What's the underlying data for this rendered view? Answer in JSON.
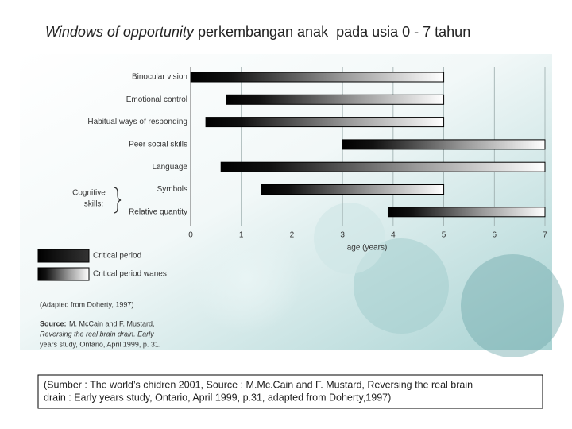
{
  "title_emphasis": "Windows of opportunity",
  "title": "perkembangan anak  pada usia 0 - 7 tahun",
  "chart_data": {
    "type": "range-bar",
    "categories": [
      "Binocular vision",
      "Emotional control",
      "Habitual ways of responding",
      "Peer social skills",
      "Language",
      "Symbols",
      "Relative quantity"
    ],
    "starts": [
      0,
      0.7,
      0.3,
      3,
      0.6,
      1.4,
      3.9
    ],
    "ends": [
      5,
      5,
      5,
      7,
      7,
      5,
      7
    ],
    "xlim": [
      0,
      7
    ],
    "xticks": [
      0,
      1,
      2,
      3,
      4,
      5,
      6,
      7
    ],
    "grid": true,
    "xlabel": "age (years)",
    "group_label": [
      "Cognitive",
      "skills:"
    ],
    "legend": [
      {
        "label": "Critical period",
        "style": "solid"
      },
      {
        "label": "Critical period wanes",
        "style": "gradient"
      }
    ]
  },
  "notes": {
    "adapted": "(Adapted from Doherty, 1997)",
    "source_label": "Source:",
    "source_lines": [
      "M. McCain and F. Mustard,",
      "Reversing the real brain drain. Early",
      "years study, Ontario, April 1999, p. 31."
    ]
  },
  "caption": [
    "(Sumber : The world’s chidren 2001, Source : M.Mc.Cain and F. Mustard, Reversing the real brain",
    "drain : Early years study, Ontario, April 1999, p.31, adapted from Doherty,1997)"
  ]
}
